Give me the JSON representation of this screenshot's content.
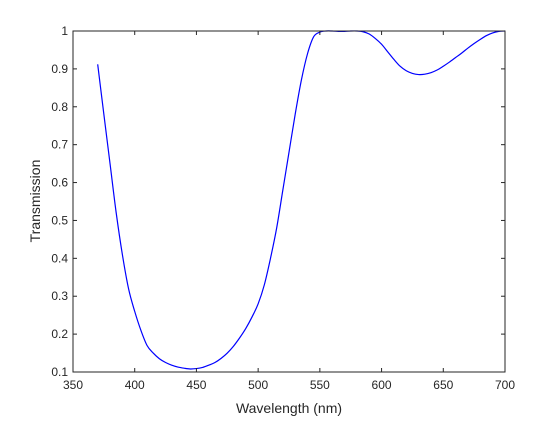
{
  "chart_data": {
    "type": "line",
    "title": "",
    "xlabel": "Wavelength (nm)",
    "ylabel": "Transmission",
    "xlim": [
      350,
      700
    ],
    "ylim": [
      0.1,
      1
    ],
    "xticks": [
      "350",
      "400",
      "450",
      "500",
      "550",
      "600",
      "650",
      "700"
    ],
    "yticks": [
      "0.1",
      "0.2",
      "0.3",
      "0.4",
      "0.5",
      "0.6",
      "0.7",
      "0.8",
      "0.9",
      "1"
    ],
    "grid": false,
    "legend": "none",
    "series": [
      {
        "color": "#0000ff",
        "x": [
          370,
          375,
          380,
          385,
          390,
          395,
          400,
          405,
          410,
          415,
          420,
          425,
          430,
          435,
          440,
          445,
          450,
          455,
          460,
          465,
          470,
          475,
          480,
          485,
          490,
          495,
          500,
          505,
          510,
          515,
          520,
          525,
          530,
          535,
          540,
          545,
          550,
          555,
          560,
          565,
          570,
          575,
          580,
          585,
          590,
          595,
          600,
          605,
          610,
          615,
          620,
          625,
          630,
          635,
          640,
          645,
          650,
          655,
          660,
          665,
          670,
          675,
          680,
          685,
          690,
          695,
          700
        ],
        "y": [
          0.912,
          0.78,
          0.65,
          0.52,
          0.41,
          0.32,
          0.26,
          0.21,
          0.17,
          0.15,
          0.135,
          0.125,
          0.118,
          0.113,
          0.11,
          0.108,
          0.109,
          0.112,
          0.118,
          0.125,
          0.136,
          0.15,
          0.168,
          0.19,
          0.215,
          0.245,
          0.28,
          0.33,
          0.4,
          0.48,
          0.58,
          0.68,
          0.78,
          0.87,
          0.94,
          0.985,
          0.997,
          1.0,
          1.0,
          0.999,
          0.999,
          1.0,
          1.0,
          0.998,
          0.992,
          0.98,
          0.965,
          0.945,
          0.925,
          0.907,
          0.895,
          0.888,
          0.885,
          0.886,
          0.89,
          0.897,
          0.907,
          0.918,
          0.93,
          0.942,
          0.955,
          0.967,
          0.978,
          0.988,
          0.995,
          0.999,
          1.0
        ]
      }
    ]
  }
}
